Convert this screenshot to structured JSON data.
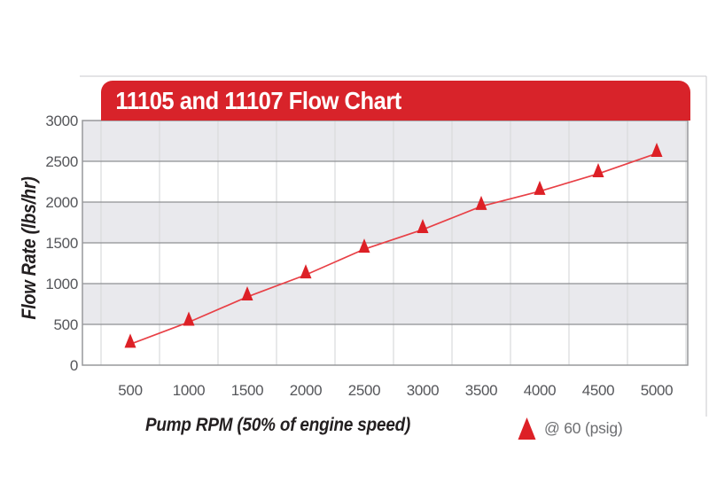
{
  "chart_data": {
    "type": "line",
    "title": "11105 and 11107 Flow Chart",
    "xlabel": "Pump RPM (50% of engine speed)",
    "ylabel": "Flow Rate (lbs/hr)",
    "x": [
      500,
      1000,
      1500,
      2000,
      2500,
      3000,
      3500,
      4000,
      4500,
      5000
    ],
    "series": [
      {
        "name": "@ 60 (psig)",
        "marker": "triangle-up",
        "values": [
          290,
          560,
          870,
          1140,
          1455,
          1695,
          1980,
          2165,
          2380,
          2630
        ]
      }
    ],
    "ylim": [
      0,
      3000
    ],
    "ytick_step": 500,
    "yticks": [
      0,
      500,
      1000,
      1500,
      2000,
      2500,
      3000
    ],
    "grid": {
      "horizontal": true,
      "vertical": true,
      "vertical_position": "between-categories"
    },
    "background_bands": "alternating gray/white per 500 lbs/hr",
    "legend_position": "bottom-right"
  },
  "colors": {
    "accent_red": "#d8232a",
    "marker_red": "#dd2026",
    "line_red": "#e84046",
    "band_gray": "#e9e9ed",
    "band_white": "#ffffff",
    "h_gridline": "#8f9093",
    "v_gridline": "#d9dadc",
    "plot_border": "#97989b",
    "frame_line": "#c9cacc",
    "tick_text": "#55565a",
    "axis_title_text": "#231f20",
    "legend_text": "#6d6e71",
    "title_text": "#ffffff"
  }
}
